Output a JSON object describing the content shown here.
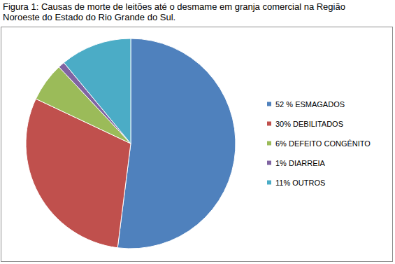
{
  "chart_data": {
    "type": "pie",
    "title": "Figura 1: Causas de morte de leitões até o desmame em granja comercial na Região Noroeste do Estado do Rio Grande do Sul.",
    "categories": [
      "52 % ESMAGADOS",
      "30% DEBILITADOS",
      "6% DEFEITO CONGÊNITO",
      "1% DIARREIA",
      "11% OUTROS"
    ],
    "values": [
      52,
      30,
      6,
      1,
      11
    ],
    "colors": [
      "#4f81bd",
      "#c0504d",
      "#9bbb59",
      "#8064a2",
      "#4bacc6"
    ],
    "legend": "right",
    "data_labels": false
  }
}
